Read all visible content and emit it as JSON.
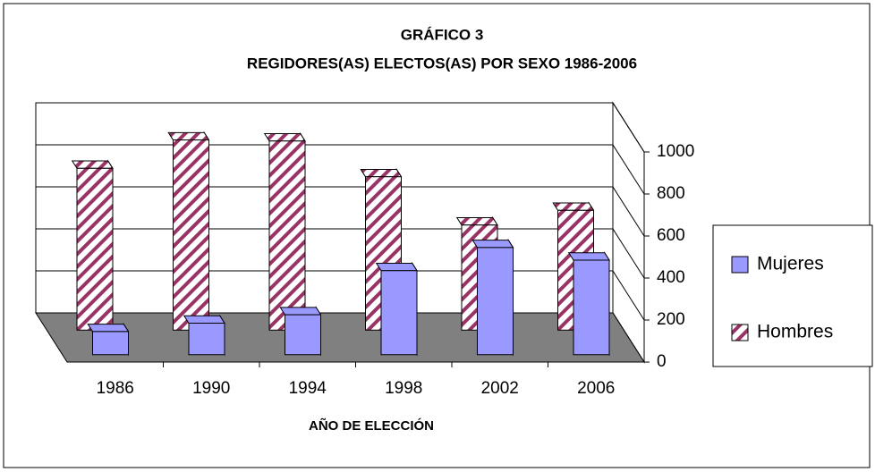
{
  "chart_data": {
    "type": "bar3d",
    "title": "GRÁFICO 3",
    "subtitle": "REGIDORES(AS)  ELECTOS(AS) POR SEXO 1986-2006",
    "x_label": "AÑO DE ELECCIÓN",
    "categories": [
      "1986",
      "1990",
      "1994",
      "1998",
      "2002",
      "2006"
    ],
    "series": [
      {
        "name": "Mujeres",
        "color": "#9999ff",
        "values": [
          110,
          150,
          190,
          400,
          510,
          450
        ]
      },
      {
        "name": "Hombres",
        "color": "#993366",
        "pattern": "diagonal",
        "values": [
          770,
          905,
          900,
          730,
          500,
          570
        ]
      }
    ],
    "ylim": [
      0,
      1000
    ],
    "yticks": [
      0,
      200,
      400,
      600,
      800,
      1000
    ],
    "grid": true,
    "legend": "right"
  }
}
